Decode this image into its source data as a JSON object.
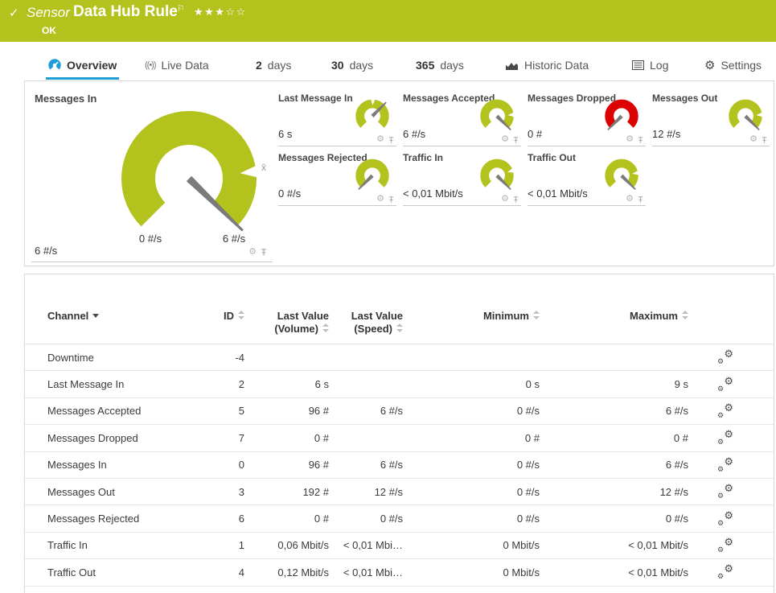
{
  "header": {
    "check": "✓",
    "kind": "Sensor",
    "title": "Data Hub Rule",
    "flag": "⚐",
    "stars_filled": "★★★",
    "stars_empty": "☆☆",
    "status": "OK"
  },
  "tabs": {
    "overview": "Overview",
    "live_data": "Live Data",
    "days2_num": "2",
    "days2_label": "days",
    "days30_num": "30",
    "days30_label": "days",
    "days365_num": "365",
    "days365_label": "days",
    "historic": "Historic Data",
    "log": "Log",
    "settings": "Settings"
  },
  "big_gauge": {
    "title": "Messages In",
    "value": "6 #/s",
    "scale_min": "0 #/s",
    "scale_max": "6 #/s",
    "avg_label": "x̄",
    "color": "#b3c21c",
    "needle_angle": 44,
    "marker_angle": -6
  },
  "small_gauges": [
    {
      "title": "Last Message In",
      "value": "6 s",
      "color": "#b3c21c",
      "needle_angle": -45,
      "marker_angle": -88
    },
    {
      "title": "Messages Accepted",
      "value": "6 #/s",
      "color": "#b3c21c",
      "needle_angle": 45,
      "marker_angle": -5
    },
    {
      "title": "Messages Dropped",
      "value": "0 #",
      "color": "#dd0202",
      "needle_angle": 135,
      "marker_angle": null
    },
    {
      "title": "Messages Out",
      "value": "12 #/s",
      "color": "#b3c21c",
      "needle_angle": 45,
      "marker_angle": -5
    },
    {
      "title": "Messages Rejected",
      "value": "0 #/s",
      "color": "#b3c21c",
      "needle_angle": 135,
      "marker_angle": null
    },
    {
      "title": "Traffic In",
      "value": "< 0,01 Mbit/s",
      "color": "#b3c21c",
      "needle_angle": 45,
      "marker_angle": -18
    },
    {
      "title": "Traffic Out",
      "value": "< 0,01 Mbit/s",
      "color": "#b3c21c",
      "needle_angle": 45,
      "marker_angle": -10
    }
  ],
  "table": {
    "headers": {
      "channel": "Channel",
      "id": "ID",
      "volume_line1": "Last Value",
      "volume_line2": "(Volume)",
      "speed_line1": "Last Value",
      "speed_line2": "(Speed)",
      "minimum": "Minimum",
      "maximum": "Maximum"
    },
    "rows": [
      {
        "channel": "Downtime",
        "id": "-4",
        "volume": "",
        "speed": "",
        "min": "",
        "max": ""
      },
      {
        "channel": "Last Message In",
        "id": "2",
        "volume": "6 s",
        "speed": "",
        "min": "0 s",
        "max": "9 s"
      },
      {
        "channel": "Messages Accepted",
        "id": "5",
        "volume": "96 #",
        "speed": "6 #/s",
        "min": "0 #/s",
        "max": "6 #/s"
      },
      {
        "channel": "Messages Dropped",
        "id": "7",
        "volume": "0 #",
        "speed": "",
        "min": "0 #",
        "max": "0 #"
      },
      {
        "channel": "Messages In",
        "id": "0",
        "volume": "96 #",
        "speed": "6 #/s",
        "min": "0 #/s",
        "max": "6 #/s"
      },
      {
        "channel": "Messages Out",
        "id": "3",
        "volume": "192 #",
        "speed": "12 #/s",
        "min": "0 #/s",
        "max": "12 #/s"
      },
      {
        "channel": "Messages Rejected",
        "id": "6",
        "volume": "0 #",
        "speed": "0 #/s",
        "min": "0 #/s",
        "max": "0 #/s"
      },
      {
        "channel": "Traffic In",
        "id": "1",
        "volume": "0,06 Mbit/s",
        "speed": "< 0,01 Mbi…",
        "min": "0 Mbit/s",
        "max": "< 0,01 Mbit/s"
      },
      {
        "channel": "Traffic Out",
        "id": "4",
        "volume": "0,12 Mbit/s",
        "speed": "< 0,01 Mbi…",
        "min": "0 Mbit/s",
        "max": "< 0,01 Mbit/s"
      }
    ]
  },
  "icons": {
    "gear": "⚙",
    "live": "((•))"
  },
  "colors": {
    "status_ok_green": "#b3c21c",
    "alert_red": "#dd0202",
    "accent_blue": "#1e9dd8",
    "needle_gray": "#7b7b7b"
  }
}
